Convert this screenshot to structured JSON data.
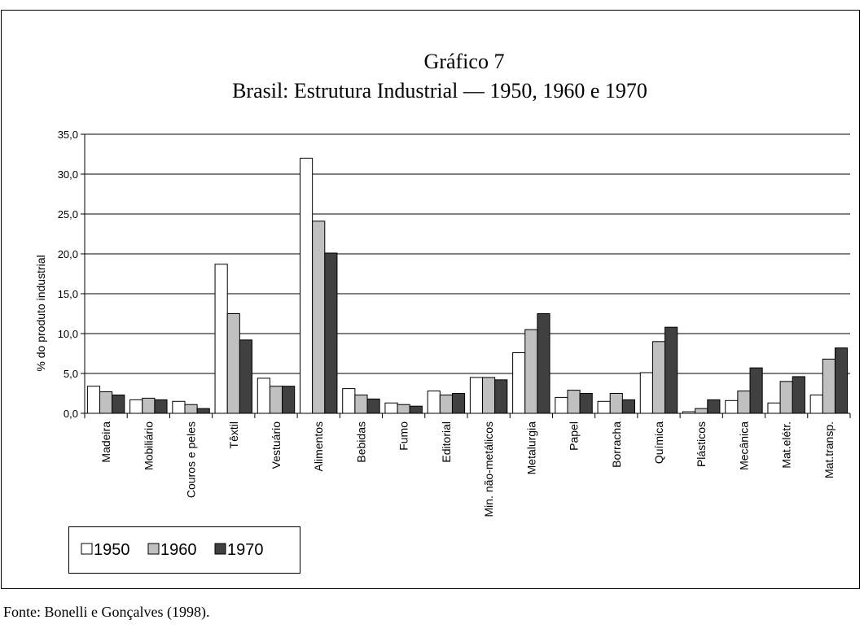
{
  "chart_data": {
    "type": "bar",
    "title": "Gráfico 7",
    "subtitle": "Brasil: Estrutura Industrial — 1950, 1960 e 1970",
    "y_label": "% do produto industrial",
    "source": "Fonte: Bonelli e Gonçalves (1998).",
    "categories": [
      "Madeira",
      "Mobiliário",
      "Couros e peles",
      "Têxtil",
      "Vestuário",
      "Alimentos",
      "Bebidas",
      "Fumo",
      "Editorial",
      "Min. não-metálicos",
      "Metalurgia",
      "Papel",
      "Borracha",
      "Química",
      "Plásticos",
      "Mecânica",
      "Mat.elétr.",
      "Mat.transp."
    ],
    "series": [
      {
        "name": "1950",
        "color": "#ffffff",
        "values": [
          3.4,
          1.7,
          1.5,
          18.7,
          4.4,
          32.0,
          3.1,
          1.3,
          2.8,
          4.5,
          7.6,
          2.0,
          1.5,
          5.1,
          0.2,
          1.6,
          1.3,
          2.3
        ]
      },
      {
        "name": "1960",
        "color": "#c0c0c0",
        "values": [
          2.7,
          1.9,
          1.1,
          12.5,
          3.4,
          24.1,
          2.3,
          1.1,
          2.3,
          4.5,
          10.5,
          2.9,
          2.5,
          9.0,
          0.6,
          2.8,
          4.0,
          6.8
        ]
      },
      {
        "name": "1970",
        "color": "#404040",
        "values": [
          2.3,
          1.7,
          0.6,
          9.2,
          3.4,
          20.1,
          1.8,
          0.9,
          2.5,
          4.2,
          12.5,
          2.5,
          1.7,
          10.8,
          1.7,
          5.7,
          4.6,
          8.2
        ]
      }
    ],
    "ylim": [
      0,
      35
    ],
    "yticks": [
      {
        "value": 0,
        "label": "0,0"
      },
      {
        "value": 5,
        "label": "5,0"
      },
      {
        "value": 10,
        "label": "10,0"
      },
      {
        "value": 15,
        "label": "15,0"
      },
      {
        "value": 20,
        "label": "20,0"
      },
      {
        "value": 25,
        "label": "25,0"
      },
      {
        "value": 30,
        "label": "30,0"
      },
      {
        "value": 35,
        "label": "35,0"
      }
    ],
    "grid": true,
    "legend": "bottom-left"
  }
}
